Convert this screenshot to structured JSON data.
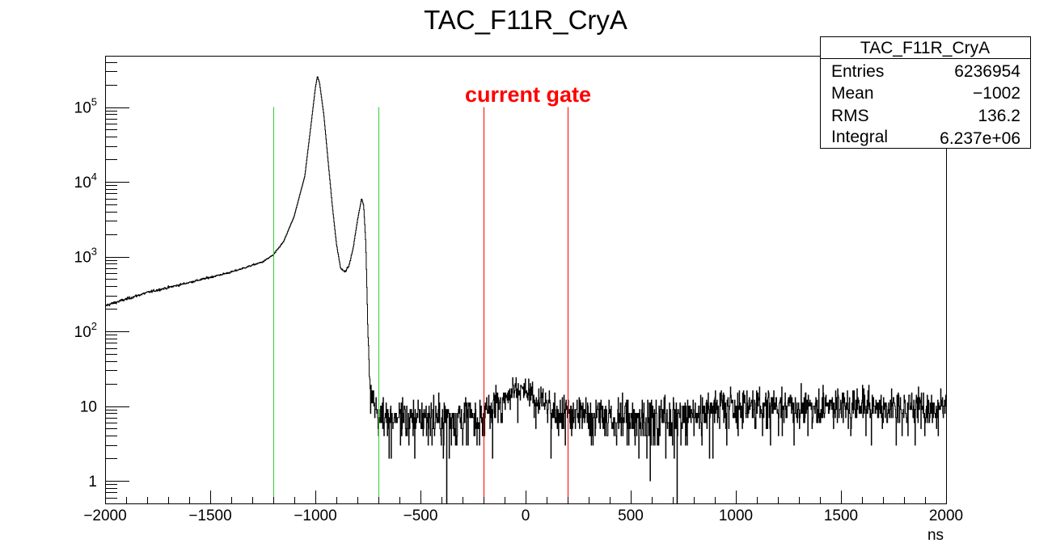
{
  "chart_data": {
    "type": "line",
    "subtype": "histogram-step",
    "title": "TAC_F11R_CryA",
    "xlabel": "ns",
    "ylabel": "",
    "xlim": [
      -2000,
      2000
    ],
    "ylim": [
      0.5,
      490000
    ],
    "yscale": "log",
    "grid": false,
    "x_ticks": [
      -2000,
      -1500,
      -1000,
      -500,
      0,
      500,
      1000,
      1500,
      2000
    ],
    "x_tick_labels": [
      "−2000",
      "−1500",
      "−1000",
      "−500",
      "0",
      "500",
      "1000",
      "1500",
      "2000"
    ],
    "y_ticks": [
      1,
      10,
      100,
      1000,
      10000,
      100000
    ],
    "y_tick_labels": [
      {
        "base": "1",
        "exp": ""
      },
      {
        "base": "10",
        "exp": ""
      },
      {
        "base": "10",
        "exp": "2"
      },
      {
        "base": "10",
        "exp": "3"
      },
      {
        "base": "10",
        "exp": "4"
      },
      {
        "base": "10",
        "exp": "5"
      }
    ],
    "series": [
      {
        "name": "TAC_F11R_CryA",
        "color": "#000000",
        "description": "Time-difference spectrum: rising background, main prompt peak near -990 ns, secondary peak near -780 ns, sharp drop near -740 ns to a flat ~5-15 count floor with a small bump near -50 ns",
        "x": [
          -2000,
          -1800,
          -1600,
          -1400,
          -1250,
          -1200,
          -1150,
          -1100,
          -1050,
          -1020,
          -1000,
          -990,
          -980,
          -960,
          -940,
          -920,
          -900,
          -880,
          -860,
          -840,
          -820,
          -800,
          -780,
          -770,
          -760,
          -750,
          -740,
          -730,
          -720,
          -700,
          -600,
          -500,
          -400,
          -300,
          -200,
          -150,
          -100,
          -50,
          0,
          50,
          100,
          150,
          200,
          300,
          400,
          500,
          600,
          700,
          800,
          900,
          1000,
          1200,
          1400,
          1600,
          1800,
          2000
        ],
        "values": [
          220,
          330,
          450,
          620,
          850,
          1050,
          1600,
          3500,
          12000,
          60000,
          180000,
          260000,
          210000,
          80000,
          20000,
          5000,
          1500,
          700,
          620,
          750,
          1300,
          3000,
          6000,
          4800,
          1500,
          100,
          20,
          14,
          12,
          8,
          7,
          7,
          7,
          7,
          8,
          10,
          14,
          17,
          15,
          12,
          10,
          9,
          8,
          8,
          7,
          7,
          7,
          7,
          8,
          10,
          10,
          10,
          10,
          10,
          10,
          10
        ]
      }
    ],
    "vertical_lines": [
      {
        "x": -1200,
        "color": "#33cc33",
        "role": "green-marker-1",
        "y_top": 100000
      },
      {
        "x": -700,
        "color": "#33cc33",
        "role": "green-marker-2",
        "y_top": 100000
      },
      {
        "x": -200,
        "color": "#ff0000",
        "role": "gate-low",
        "y_top": 100000
      },
      {
        "x": 200,
        "color": "#ff0000",
        "role": "gate-high",
        "y_top": 100000
      }
    ],
    "annotations": [
      {
        "text": "current gate",
        "x": 0,
        "y": 140000,
        "color": "#ff0000",
        "bold": true
      }
    ],
    "stats_box": {
      "title": "TAC_F11R_CryA",
      "rows": [
        {
          "label": "Entries",
          "value": "6236954"
        },
        {
          "label": "Mean",
          "value": "−1002"
        },
        {
          "label": "RMS",
          "value": "136.2"
        },
        {
          "label": "Integral",
          "value": "6.237e+06"
        }
      ]
    },
    "legend_position": "top-right"
  },
  "colors": {
    "frame": "#000000",
    "histogram": "#000000",
    "green_lines": "#33cc33",
    "red_lines": "#ff0000",
    "annotation": "#ff0000"
  }
}
